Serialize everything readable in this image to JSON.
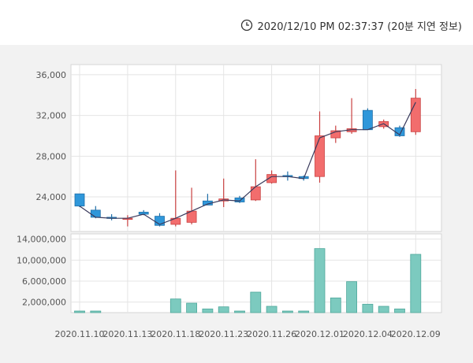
{
  "timestamp": "2020/12/10 PM 02:37:37 (20분 지연 정보)",
  "colors": {
    "up": "#f26d6d",
    "down": "#2f97da",
    "volume": "#7ccabf",
    "ma_line": "#3a3a5c"
  },
  "chart_data": {
    "type": "candlestick+bar",
    "price": {
      "ylim": [
        20600,
        37000
      ],
      "ticks": [
        "24,000",
        "28,000",
        "32,000",
        "36,000"
      ],
      "tick_values": [
        24000,
        28000,
        32000,
        36000
      ],
      "ohlc": [
        {
          "o": 24300,
          "h": 24300,
          "l": 23000,
          "c": 23100
        },
        {
          "o": 22700,
          "h": 23100,
          "l": 21900,
          "c": 22000
        },
        {
          "o": 22000,
          "h": 22300,
          "l": 21700,
          "c": 21900
        },
        {
          "o": 21900,
          "h": 22200,
          "l": 21100,
          "c": 21900
        },
        {
          "o": 22500,
          "h": 22700,
          "l": 22200,
          "c": 22300
        },
        {
          "o": 22100,
          "h": 22400,
          "l": 21100,
          "c": 21200
        },
        {
          "o": 21300,
          "h": 26600,
          "l": 21100,
          "c": 21900
        },
        {
          "o": 21500,
          "h": 24900,
          "l": 21300,
          "c": 22600
        },
        {
          "o": 23600,
          "h": 24300,
          "l": 23300,
          "c": 23200
        },
        {
          "o": 23600,
          "h": 25800,
          "l": 23000,
          "c": 23800
        },
        {
          "o": 23900,
          "h": 24100,
          "l": 23400,
          "c": 23500
        },
        {
          "o": 23700,
          "h": 27700,
          "l": 23600,
          "c": 25000
        },
        {
          "o": 25400,
          "h": 26600,
          "l": 25300,
          "c": 26200
        },
        {
          "o": 26100,
          "h": 26500,
          "l": 25600,
          "c": 26000
        },
        {
          "o": 26000,
          "h": 26100,
          "l": 25600,
          "c": 25800
        },
        {
          "o": 26000,
          "h": 32400,
          "l": 25400,
          "c": 30000
        },
        {
          "o": 29800,
          "h": 31000,
          "l": 29300,
          "c": 30500
        },
        {
          "o": 30400,
          "h": 33700,
          "l": 30200,
          "c": 30700
        },
        {
          "o": 32500,
          "h": 32700,
          "l": 30600,
          "c": 30600
        },
        {
          "o": 30900,
          "h": 31600,
          "l": 30700,
          "c": 31400
        },
        {
          "o": 30800,
          "h": 31000,
          "l": 29900,
          "c": 30000
        },
        {
          "o": 30400,
          "h": 34600,
          "l": 30100,
          "c": 33700
        }
      ],
      "ma": [
        23100,
        22000,
        21900,
        21900,
        22300,
        21300,
        21900,
        22600,
        23300,
        23700,
        23600,
        25000,
        26000,
        26000,
        25800,
        29800,
        30400,
        30600,
        30600,
        31200,
        30100,
        33300
      ]
    },
    "volume": {
      "ylim": [
        0,
        15000000
      ],
      "ticks": [
        "2,000,000",
        "6,000,000",
        "10,000,000",
        "14,000,000"
      ],
      "tick_values": [
        2000000,
        6000000,
        10000000,
        14000000
      ],
      "values": [
        300000,
        300000,
        0,
        0,
        0,
        0,
        2600000,
        1800000,
        700000,
        1100000,
        300000,
        3900000,
        1200000,
        300000,
        300000,
        12200000,
        2800000,
        5900000,
        1600000,
        1200000,
        700000,
        11100000
      ]
    },
    "x_labels": [
      {
        "index": 0,
        "label": "2020.11.10"
      },
      {
        "index": 3,
        "label": "2020.11.13"
      },
      {
        "index": 6,
        "label": "2020.11.18"
      },
      {
        "index": 9,
        "label": "2020.11.23"
      },
      {
        "index": 12,
        "label": "2020.11.26"
      },
      {
        "index": 15,
        "label": "2020.12.01"
      },
      {
        "index": 18,
        "label": "2020.12.04"
      },
      {
        "index": 21,
        "label": "2020.12.09"
      }
    ]
  }
}
